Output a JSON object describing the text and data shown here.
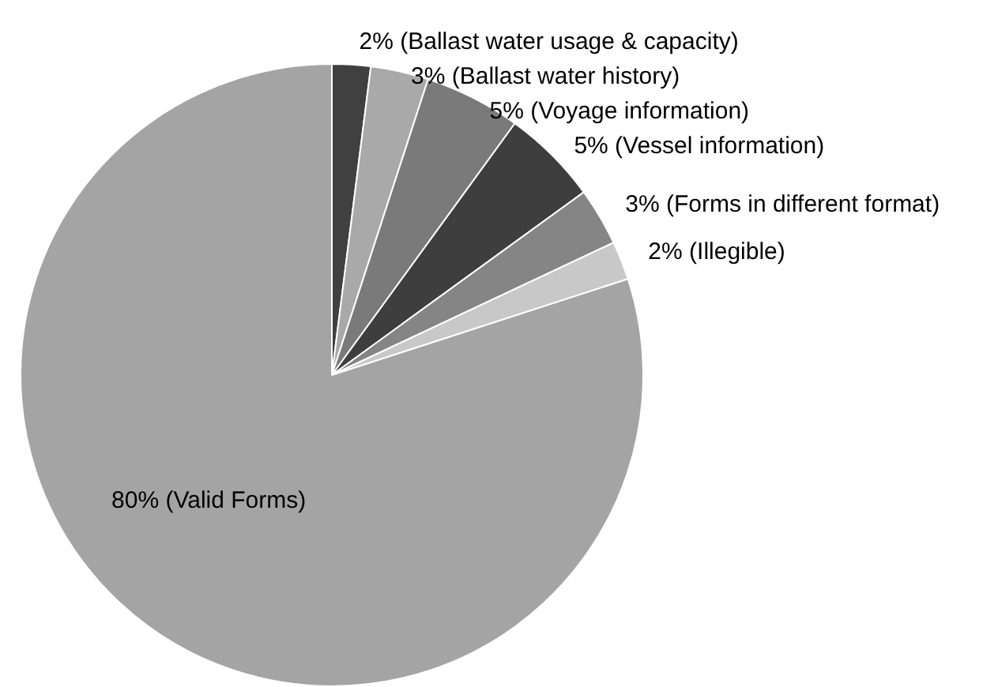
{
  "chart_data": {
    "type": "pie",
    "categories": [
      "2% (Ballast water usage & capacity)",
      "3% (Ballast water history)",
      "5% (Voyage information)",
      "5% (Vessel information)",
      "3% (Forms in different format)",
      "2% (Illegible)",
      "80% (Valid Forms)"
    ],
    "values": [
      2,
      3,
      5,
      5,
      3,
      2,
      80
    ],
    "colors": [
      "#404040",
      "#a9a9a9",
      "#7a7a7a",
      "#3e3e3e",
      "#858585",
      "#c8c8c8",
      "#a4a4a4"
    ],
    "legend": false
  }
}
